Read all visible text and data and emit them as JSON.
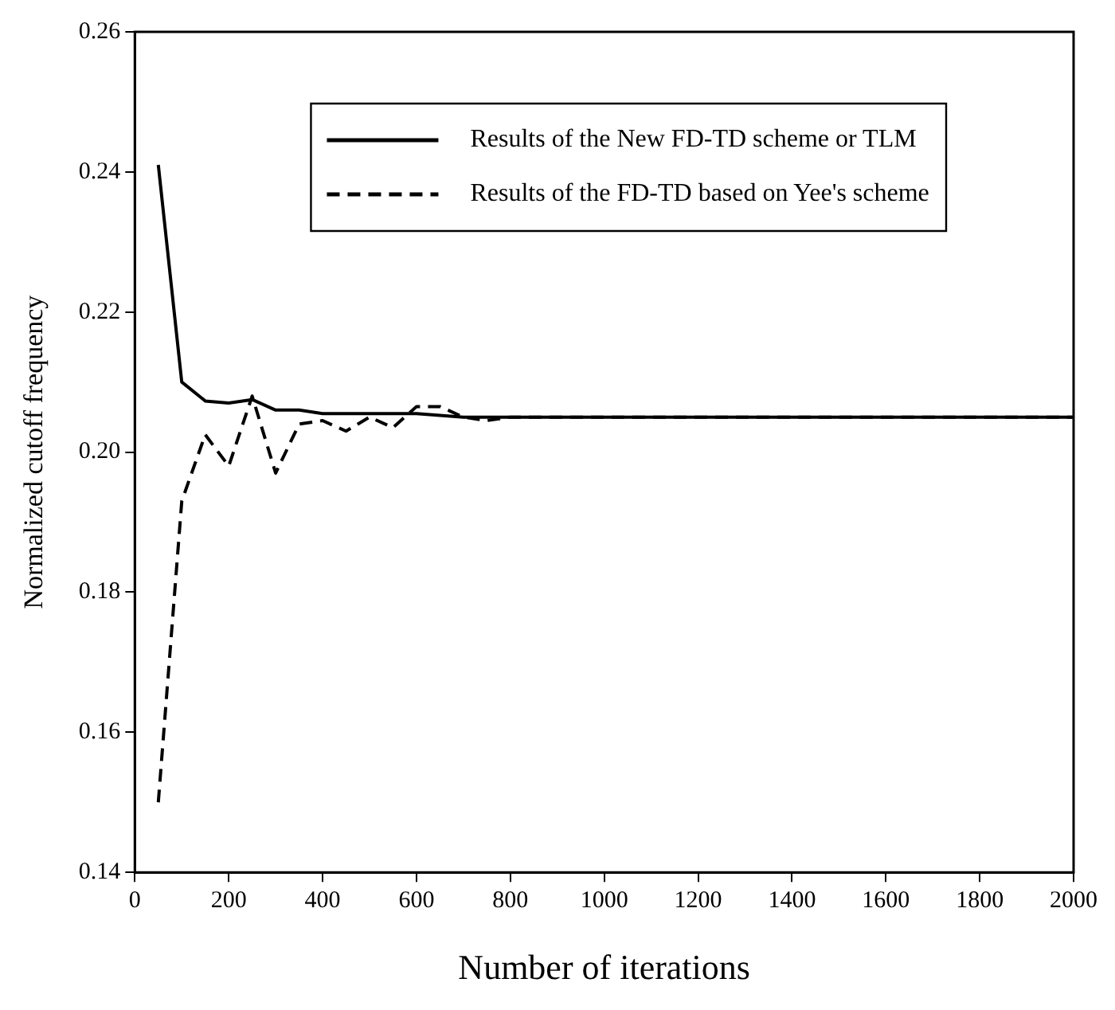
{
  "chart_data": {
    "type": "line",
    "xlabel": "Number of iterations",
    "ylabel": "Normalized cutoff frequency",
    "xlim": [
      0,
      2000
    ],
    "xticks": [
      0,
      200,
      400,
      600,
      800,
      1000,
      1200,
      1400,
      1600,
      1800,
      2000
    ],
    "ylim": [
      0.14,
      0.26
    ],
    "yticks": [
      0.14,
      0.16,
      0.18,
      {
        "value": 0.2,
        "label": "0.20"
      },
      0.22,
      0.24,
      0.26
    ],
    "grid": false,
    "legend": "top right",
    "marker": "none",
    "series": [
      {
        "name": "Results of the New FD-TD scheme or TLM",
        "color": "#000000",
        "line_style": "solid",
        "x": [
          50,
          100,
          150,
          200,
          250,
          300,
          350,
          400,
          500,
          600,
          700,
          800,
          1000,
          1200,
          1400,
          1600,
          1800,
          2000
        ],
        "values": [
          0.241,
          0.21,
          0.2073,
          0.207,
          0.2075,
          0.206,
          0.206,
          0.2055,
          0.2055,
          0.2055,
          0.205,
          0.205,
          0.205,
          0.205,
          0.205,
          0.205,
          0.205,
          0.205
        ]
      },
      {
        "name": "Results of the FD-TD based on Yee's scheme",
        "color": "#000000",
        "line_style": "dashed",
        "x": [
          50,
          100,
          150,
          200,
          250,
          300,
          350,
          400,
          450,
          500,
          550,
          600,
          650,
          700,
          750,
          800,
          1000,
          1200,
          1400,
          1600,
          1800,
          2000
        ],
        "values": [
          0.15,
          0.193,
          0.2025,
          0.198,
          0.208,
          0.197,
          0.204,
          0.2045,
          0.203,
          0.205,
          0.2035,
          0.2065,
          0.2065,
          0.205,
          0.2045,
          0.205,
          0.205,
          0.205,
          0.205,
          0.205,
          0.205,
          0.205
        ]
      }
    ]
  }
}
